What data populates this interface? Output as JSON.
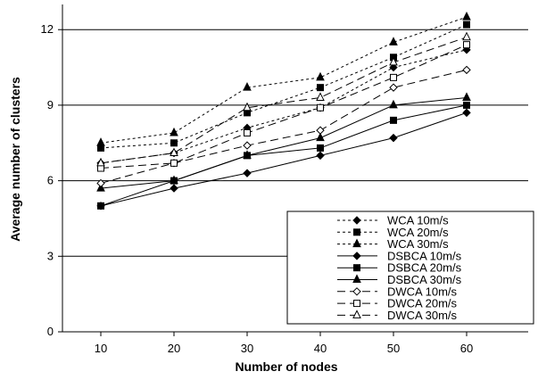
{
  "chart_data": {
    "type": "line",
    "title": "",
    "xlabel": "Number of nodes",
    "ylabel": "Average number of clusters",
    "categories": [
      "10",
      "20",
      "30",
      "40",
      "50",
      "60"
    ],
    "ylim": [
      0,
      13
    ],
    "yticks": [
      "0",
      "3",
      "6",
      "9",
      "12"
    ],
    "grid": "horizontal",
    "legend_position": "bottom-right",
    "series": [
      {
        "name": "WCA 10m/s",
        "values": [
          6.7,
          7.1,
          8.1,
          8.9,
          10.5,
          11.2
        ],
        "line": "dotted",
        "marker": "diamond",
        "color": "#000000"
      },
      {
        "name": "WCA 20m/s",
        "values": [
          7.3,
          7.5,
          8.7,
          9.7,
          10.9,
          12.2
        ],
        "line": "dotted",
        "marker": "square",
        "color": "#000000"
      },
      {
        "name": "WCA 30m/s",
        "values": [
          7.5,
          7.9,
          9.7,
          10.1,
          11.5,
          12.5
        ],
        "line": "dotted",
        "marker": "triangle",
        "color": "#000000"
      },
      {
        "name": "DSBCA  10m/s",
        "values": [
          5.0,
          5.7,
          6.3,
          7.0,
          7.7,
          8.7
        ],
        "line": "solid",
        "marker": "diamond",
        "color": "#000000"
      },
      {
        "name": "DSBCA  20m/s",
        "values": [
          5.0,
          6.0,
          7.0,
          7.3,
          8.4,
          9.0
        ],
        "line": "solid",
        "marker": "square",
        "color": "#000000"
      },
      {
        "name": "DSBCA  30m/s",
        "values": [
          5.7,
          6.0,
          7.0,
          7.7,
          9.0,
          9.3
        ],
        "line": "solid",
        "marker": "triangle",
        "color": "#000000"
      },
      {
        "name": "DWCA 10m/s",
        "values": [
          5.9,
          6.7,
          7.4,
          8.0,
          9.7,
          10.4
        ],
        "line": "dashed",
        "marker": "diamond-open",
        "color": "#000000"
      },
      {
        "name": "DWCA 20m/s",
        "values": [
          6.5,
          6.7,
          7.9,
          8.9,
          10.1,
          11.4
        ],
        "line": "dashed",
        "marker": "square-open",
        "color": "#000000"
      },
      {
        "name": "DWCA 30m/s",
        "values": [
          6.7,
          7.1,
          8.9,
          9.3,
          10.7,
          11.7
        ],
        "line": "dashed",
        "marker": "triangle-open",
        "color": "#000000"
      }
    ]
  }
}
